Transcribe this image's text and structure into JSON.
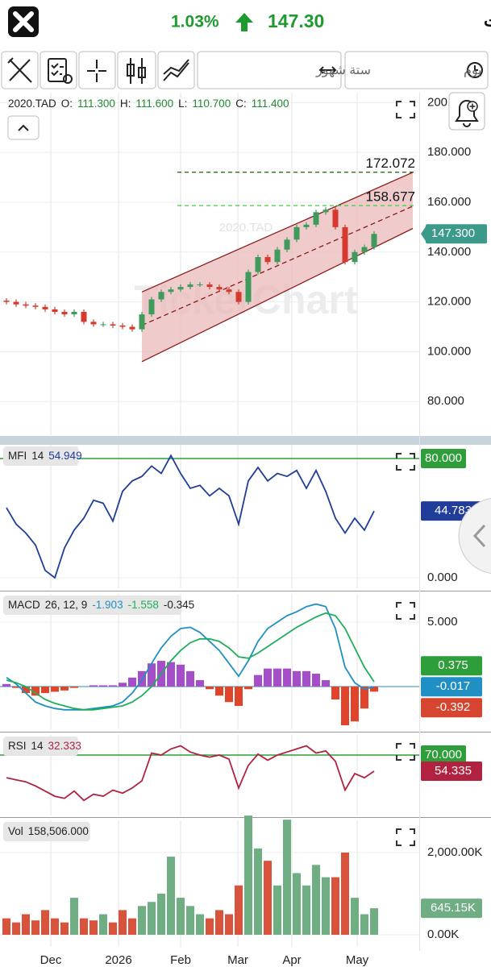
{
  "header": {
    "title": "سابك للمغذيات",
    "change": "1.03%",
    "price": "147.30"
  },
  "toolbar": {
    "range": "ستة شهور",
    "interval": "يوم"
  },
  "chart_data": [
    {
      "type": "candlestick",
      "legend": [
        "2020.TAD",
        "O:",
        "111.300",
        "H:",
        "111.600",
        "L:",
        "110.700",
        "C:",
        "111.400"
      ],
      "legend_colors": [
        "#222",
        "#222",
        "#1e8a2e",
        "#222",
        "#1e8a2e",
        "#222",
        "#1e8a2e",
        "#222",
        "#1e8a2e"
      ],
      "watermark": "TickerChart",
      "x": [
        2,
        5,
        8,
        11,
        14,
        17,
        20,
        23,
        26,
        29,
        32,
        35,
        38,
        41,
        44,
        47,
        50,
        53,
        56,
        59,
        62,
        65,
        68,
        71,
        74,
        77,
        80,
        83,
        86,
        89,
        92,
        95,
        98,
        101,
        104,
        107,
        110,
        113,
        116
      ],
      "open": [
        120.5,
        120,
        119,
        118.5,
        118,
        117,
        116,
        115,
        116,
        112,
        111,
        111,
        110.5,
        110,
        109,
        115,
        121,
        124,
        125,
        126,
        127,
        127,
        126,
        125,
        124,
        120,
        132,
        138,
        136,
        141,
        145,
        150,
        151,
        156,
        157,
        150,
        136,
        140,
        142
      ],
      "high": [
        121.5,
        121,
        120,
        119.5,
        119,
        118,
        117,
        117,
        117,
        113,
        112,
        112,
        111.5,
        111,
        116,
        122,
        125,
        126,
        127,
        128,
        128,
        128,
        127,
        126,
        125,
        133,
        139,
        139,
        142,
        146,
        151,
        152,
        157,
        158,
        158,
        151,
        141,
        143,
        148.3
      ],
      "low": [
        119,
        118,
        117.5,
        117,
        116,
        115,
        114,
        114,
        111,
        110,
        110,
        109.5,
        109,
        108,
        108,
        114,
        120,
        123,
        124,
        125,
        126,
        125,
        124,
        123,
        119,
        119,
        131,
        135,
        135,
        140,
        144,
        149,
        150,
        155,
        149,
        135,
        135,
        139,
        141
      ],
      "close": [
        120,
        119,
        118.5,
        118,
        117,
        116,
        115,
        116,
        112,
        111,
        111,
        110.5,
        110,
        109,
        115,
        121,
        124,
        125,
        126,
        127,
        127,
        126,
        125,
        124,
        120,
        132,
        138,
        136,
        141,
        145,
        150,
        151,
        156,
        157,
        150,
        136,
        140,
        142,
        147.3
      ],
      "up_color": "#3f9a5c",
      "down_color": "#d63a2f",
      "ylim": [
        66.5,
        204
      ],
      "yticks": [
        {
          "value": 80,
          "label": "80.000"
        },
        {
          "value": 100,
          "label": "100.000"
        },
        {
          "value": 120,
          "label": "120.000"
        },
        {
          "value": 140,
          "label": "140.000"
        },
        {
          "value": 160,
          "label": "160.000"
        },
        {
          "value": 180,
          "label": "180.000"
        },
        {
          "value": 200,
          "label": "200.000"
        }
      ],
      "grid": true,
      "channel": {
        "x": [
          44,
          128
        ],
        "upper": [
          124,
          172
        ],
        "middle": [
          110.6,
          158.4
        ],
        "lower": [
          96,
          149.5
        ],
        "color": "#8b1a1a",
        "fill": "#e9b9b9"
      },
      "levels": [
        {
          "value": 172.072,
          "color": "#2f6e1f"
        },
        {
          "value": 158.677,
          "color": "#3ccf3c"
        }
      ],
      "badges": [
        {
          "value": 147.3,
          "label": "147.300",
          "color": "#3b9a8a"
        }
      ]
    },
    {
      "type": "line",
      "legend": [
        "MFI",
        "14",
        "54.949"
      ],
      "legend_colors": [
        "#222",
        "#222",
        "#1f3d99"
      ],
      "x": [
        2,
        5,
        8,
        11,
        14,
        17,
        20,
        23,
        26,
        29,
        32,
        35,
        38,
        41,
        44,
        47,
        50,
        53,
        56,
        59,
        62,
        65,
        68,
        71,
        74,
        77,
        80,
        83,
        86,
        89,
        92,
        95,
        98,
        101,
        104,
        107,
        110,
        113,
        116
      ],
      "series": [
        {
          "color": "#1f3d99",
          "values": [
            47,
            36,
            30,
            22,
            5,
            0,
            20,
            32,
            40,
            52,
            50,
            38,
            58,
            65,
            68,
            75,
            70,
            82,
            70,
            60,
            62,
            55,
            60,
            55,
            36,
            65,
            74,
            65,
            70,
            68,
            72,
            60,
            72,
            58,
            40,
            30,
            40,
            32,
            44.783
          ]
        }
      ],
      "ylim": [
        -7,
        89.2
      ],
      "yticks": [
        {
          "value": 0,
          "label": "0.000"
        }
      ],
      "ref_line": {
        "value": 80,
        "label": "80.000",
        "color": "#2e9e3a"
      },
      "badges": [
        {
          "value": 44.783,
          "label": "44.783",
          "color": "#1f3d99"
        }
      ]
    },
    {
      "type": "macd",
      "legend": [
        "MACD",
        "26, 12, 9",
        "-1.903",
        "-1.558",
        "-0.345"
      ],
      "legend_colors": [
        "#222",
        "#222",
        "#1f8fc4",
        "#1fae5a",
        "#222"
      ],
      "x": [
        2,
        5,
        8,
        11,
        14,
        17,
        20,
        23,
        26,
        29,
        32,
        35,
        38,
        41,
        44,
        47,
        50,
        53,
        56,
        59,
        62,
        65,
        68,
        71,
        74,
        77,
        80,
        83,
        86,
        89,
        92,
        95,
        98,
        101,
        104,
        107,
        110,
        113,
        116
      ],
      "series": [
        {
          "color": "#1f8fc4",
          "values": [
            0.7,
            0.2,
            -0.5,
            -1.2,
            -1.5,
            -1.7,
            -1.8,
            -1.8,
            -1.8,
            -1.7,
            -1.6,
            -1.5,
            -1.2,
            -0.5,
            0.5,
            1.8,
            3.0,
            3.9,
            4.5,
            4.6,
            4.2,
            3.5,
            2.8,
            1.8,
            0.8,
            2.0,
            3.5,
            4.5,
            5.0,
            5.5,
            5.8,
            6.2,
            6.4,
            6.2,
            4.5,
            1.5,
            0.3,
            -0.2,
            -0.017
          ]
        },
        {
          "color": "#1fae5a",
          "values": [
            0.5,
            0.3,
            0,
            -0.5,
            -1.0,
            -1.3,
            -1.5,
            -1.7,
            -1.8,
            -1.8,
            -1.7,
            -1.6,
            -1.5,
            -1.2,
            -0.7,
            0,
            1.0,
            2.0,
            2.8,
            3.4,
            3.7,
            3.7,
            3.5,
            3.0,
            2.3,
            2.2,
            2.6,
            3.1,
            3.6,
            4.1,
            4.6,
            5.0,
            5.4,
            5.7,
            5.5,
            4.5,
            3.0,
            1.5,
            0.375
          ]
        }
      ],
      "histogram": {
        "pos_color": "#a64dc9",
        "neg_color": "#e0452b",
        "values": [
          0.2,
          -0.1,
          -0.5,
          -0.7,
          -0.5,
          -0.4,
          -0.3,
          -0.1,
          0,
          0.1,
          0.1,
          0.1,
          0.3,
          0.7,
          1.2,
          1.8,
          2.0,
          1.9,
          1.7,
          1.2,
          0.5,
          -0.2,
          -0.7,
          -1.2,
          -1.5,
          -0.2,
          0.9,
          1.4,
          1.4,
          1.4,
          1.2,
          1.2,
          1.0,
          0.5,
          -1.0,
          -3.0,
          -2.7,
          -1.7,
          -0.392
        ]
      },
      "ylim": [
        -3.31,
        7.19
      ],
      "yticks": [
        {
          "value": 5,
          "label": "5.000"
        }
      ],
      "badges": [
        {
          "value": 0.375,
          "label": "0.375",
          "color": "#2e9e3a"
        },
        {
          "value": -0.017,
          "label": "-0.017",
          "color": "#1f8fc4"
        },
        {
          "value": -0.392,
          "label": "-0.392",
          "color": "#d6452f"
        }
      ]
    },
    {
      "type": "line",
      "legend": [
        "RSI",
        "14",
        "32.333"
      ],
      "legend_colors": [
        "#222",
        "#222",
        "#b0223f"
      ],
      "x": [
        2,
        5,
        8,
        11,
        14,
        17,
        20,
        23,
        26,
        29,
        32,
        35,
        38,
        41,
        44,
        47,
        50,
        53,
        56,
        59,
        62,
        65,
        68,
        71,
        74,
        77,
        80,
        83,
        86,
        89,
        92,
        95,
        98,
        101,
        104,
        107,
        110,
        113,
        116
      ],
      "series": [
        {
          "color": "#b0223f",
          "values": [
            48,
            46,
            44,
            40,
            35,
            30,
            28,
            35,
            26,
            32,
            30,
            36,
            33,
            38,
            45,
            72,
            70,
            76,
            79,
            73,
            70,
            68,
            70,
            66,
            38,
            60,
            71,
            65,
            70,
            73,
            76,
            79,
            72,
            74,
            64,
            36,
            52,
            48,
            54.335
          ]
        }
      ],
      "ylim": [
        11.3,
        89.6
      ],
      "ref_line": {
        "value": 70,
        "label": "70.000",
        "color": "#2e9e3a"
      },
      "badges": [
        {
          "value": 54.335,
          "label": "54.335",
          "color": "#b0223f"
        }
      ]
    },
    {
      "type": "bar",
      "legend": [
        "Vol",
        "158,506.000"
      ],
      "legend_colors": [
        "#222",
        "#222"
      ],
      "x": [
        2,
        5,
        8,
        11,
        14,
        17,
        20,
        23,
        26,
        29,
        32,
        35,
        38,
        41,
        44,
        47,
        50,
        53,
        56,
        59,
        62,
        65,
        68,
        71,
        74,
        77,
        80,
        83,
        86,
        89,
        92,
        95,
        98,
        101,
        104,
        107,
        110,
        113,
        116
      ],
      "values": [
        400,
        300,
        500,
        350,
        600,
        400,
        300,
        900,
        400,
        350,
        500,
        300,
        600,
        400,
        700,
        800,
        1000,
        1900,
        900,
        700,
        500,
        400,
        600,
        500,
        1200,
        2900,
        2100,
        1800,
        1200,
        2800,
        1500,
        1200,
        1700,
        1400,
        1400,
        2000,
        900,
        500,
        645.15
      ],
      "up_color": "#6fae83",
      "down_color": "#d9533c",
      "ylim": [
        -294,
        2784
      ],
      "yticks": [
        {
          "value": 0,
          "label": "0.00K"
        },
        {
          "value": 2000,
          "label": "2,000.00K"
        }
      ],
      "xlim": [
        0,
        130
      ],
      "xticks": [
        {
          "value": 15.75,
          "label": "Dec"
        },
        {
          "value": 36.75,
          "label": "2026"
        },
        {
          "value": 56,
          "label": "Feb"
        },
        {
          "value": 73.75,
          "label": "Mar"
        },
        {
          "value": 90.5,
          "label": "Apr"
        },
        {
          "value": 110.75,
          "label": "May"
        }
      ],
      "badges": [
        {
          "value": 645.15,
          "label": "645.15K",
          "color": "#6fae83"
        }
      ]
    }
  ]
}
